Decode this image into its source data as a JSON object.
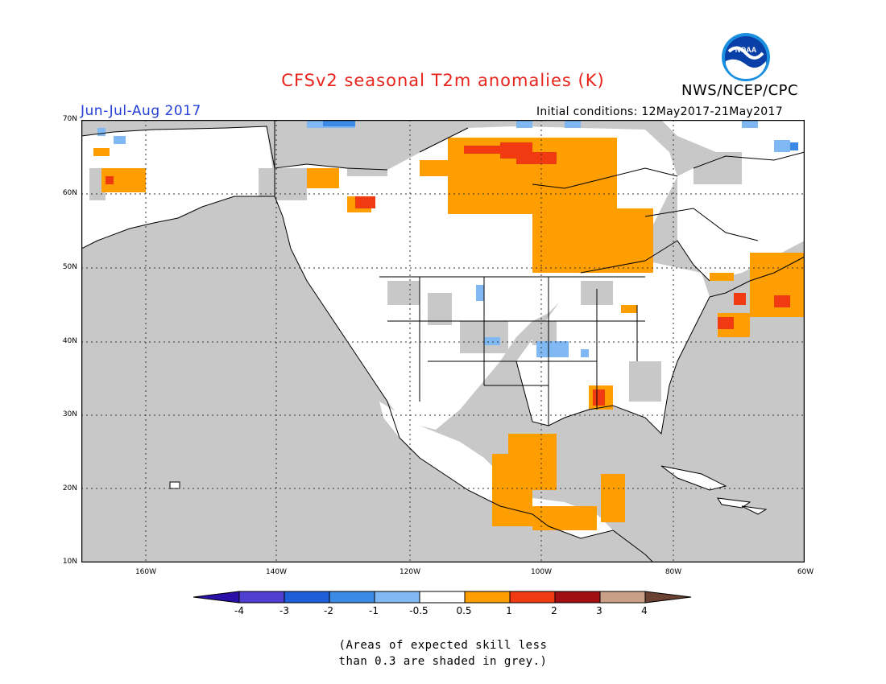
{
  "title": "CFSv2 seasonal T2m anomalies (K)",
  "agency": "NWS/NCEP/CPC",
  "period": "Jun-Jul-Aug 2017",
  "initial_conditions": "Initial conditions: 12May2017-21May2017",
  "logo_text": "NOAA",
  "lat_labels": [
    "70N",
    "60N",
    "50N",
    "40N",
    "30N",
    "20N",
    "10N"
  ],
  "lon_labels": [
    "160W",
    "140W",
    "120W",
    "100W",
    "80W",
    "60W"
  ],
  "colorbar": {
    "labels": [
      "-4",
      "-3",
      "-2",
      "-1",
      "-0.5",
      "0.5",
      "1",
      "2",
      "3",
      "4"
    ],
    "colors": [
      "#2a0fa8",
      "#4e3fd0",
      "#1e5fd8",
      "#3b8ae6",
      "#7fb8f2",
      "#ffffff",
      "#ff9e00",
      "#f23a12",
      "#a10f14",
      "#c99f88",
      "#6b4132"
    ]
  },
  "colors": {
    "low_skill_grey": "#c8c8c8",
    "title": "#e8231c",
    "period": "#2440d8"
  },
  "note": [
    "(Areas of expected skill less",
    "than 0.3 are shaded in grey.)"
  ]
}
